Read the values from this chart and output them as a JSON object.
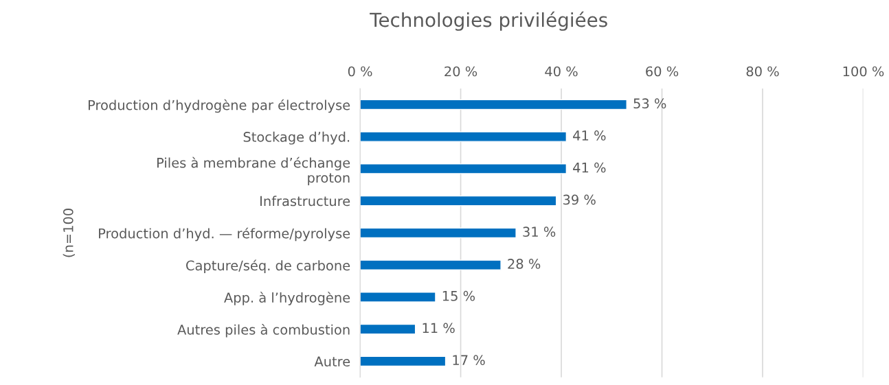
{
  "chart_data": {
    "type": "bar",
    "orientation": "horizontal",
    "title": "Technologies privilégiées",
    "ylabel": "(n=100",
    "categories": [
      "Production d’hydrogène par électrolyse",
      "Stockage d’hyd.",
      "Piles à membrane d’échange\nproton",
      "Infrastructure",
      "Production d’hyd. — réforme/pyrolyse",
      "Capture/séq. de carbone",
      "App. à l’hydrogène",
      "Autres piles à combustion",
      "Autre"
    ],
    "values": [
      53,
      41,
      41,
      39,
      31,
      28,
      15,
      11,
      17
    ],
    "value_labels": [
      "53 %",
      "41 %",
      "41 %",
      "39 %",
      "31 %",
      "28 %",
      "15 %",
      "11 %",
      "17 %"
    ],
    "color": "#0070c0",
    "xlim": [
      0,
      100
    ],
    "xticks": [
      {
        "value": 0,
        "label": "0 %"
      },
      {
        "value": 20,
        "label": "20 %"
      },
      {
        "value": 40,
        "label": "40 %"
      },
      {
        "value": 60,
        "label": "60 %"
      },
      {
        "value": 80,
        "label": "80 %"
      },
      {
        "value": 100,
        "label": "100 %"
      }
    ],
    "grid": "x"
  }
}
